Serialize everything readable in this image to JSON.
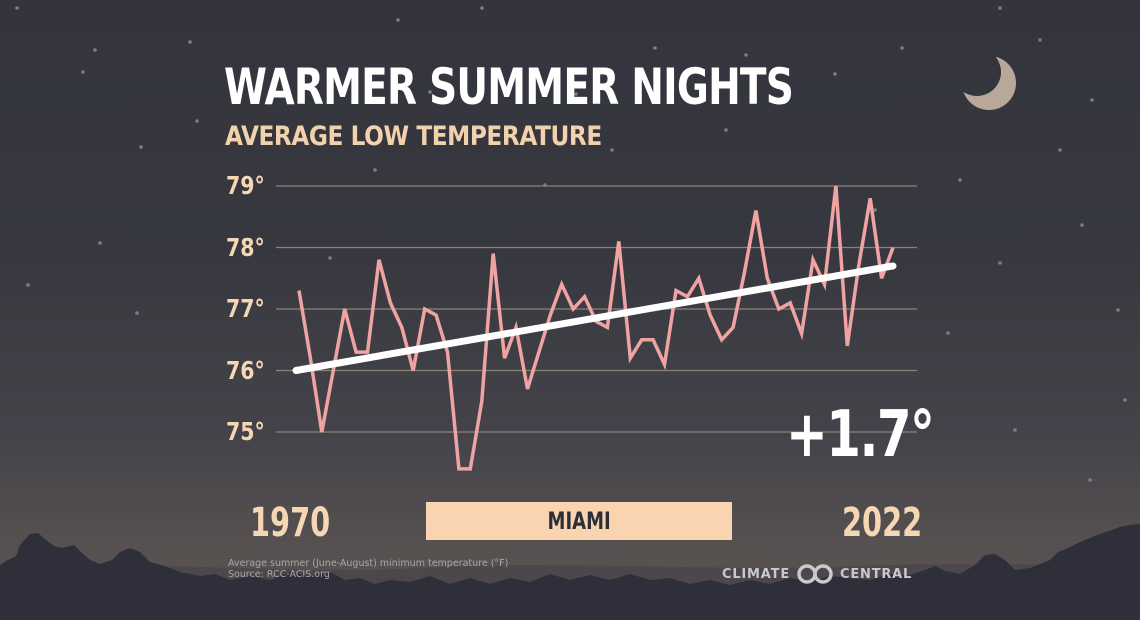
{
  "header": {
    "title": "WARMER SUMMER NIGHTS",
    "subtitle": "AVERAGE LOW TEMPERATURE"
  },
  "y_axis": {
    "ticks": [
      "79°",
      "78°",
      "77°",
      "76°",
      "75°"
    ]
  },
  "x_axis": {
    "start_label": "1970",
    "end_label": "2022"
  },
  "location_label": "MIAMI",
  "change_annotation": "+1.7°",
  "footnote": {
    "line1": "Average summer (June-August) minimum temperature (°F)",
    "line2": "Source: RCC-ACIS.org"
  },
  "brand": {
    "left_word": "CLIMATE",
    "right_word": "CENTRAL",
    "logo_icon": "interlocking-rings-icon"
  },
  "decorations": {
    "moon_icon": "crescent-moon-icon",
    "stars": "star-dot-icons",
    "skyline": "tree-silhouette"
  },
  "colors": {
    "background_top": "#33343e",
    "background_bottom": "#5c5452",
    "title": "#ffffff",
    "subtitle": "#f2d2ad",
    "axis_labels": "#f6d7b3",
    "series_line": "#f0a3a3",
    "trend_line": "#ffffff",
    "gridline": "#8a8378",
    "city_box": "#f8d5b0",
    "moon": "#b9a79a",
    "silhouette": "#2e2f3b"
  },
  "chart_data": {
    "type": "line",
    "title": "WARMER SUMMER NIGHTS",
    "subtitle": "AVERAGE LOW TEMPERATURE",
    "xlabel": "",
    "ylabel": "Average summer (June-August) minimum temperature (°F)",
    "location": "MIAMI",
    "x": [
      1970,
      1971,
      1972,
      1973,
      1974,
      1975,
      1976,
      1977,
      1978,
      1979,
      1980,
      1981,
      1982,
      1983,
      1984,
      1985,
      1986,
      1987,
      1988,
      1989,
      1990,
      1991,
      1992,
      1993,
      1994,
      1995,
      1996,
      1997,
      1998,
      1999,
      2000,
      2001,
      2002,
      2003,
      2004,
      2005,
      2006,
      2007,
      2008,
      2009,
      2010,
      2011,
      2012,
      2013,
      2014,
      2015,
      2016,
      2017,
      2018,
      2019,
      2020,
      2021,
      2022
    ],
    "series": [
      {
        "name": "Average low temperature",
        "color": "#f0a3a3",
        "values": [
          77.3,
          76.2,
          75.0,
          76.0,
          77.0,
          76.3,
          76.3,
          77.8,
          77.1,
          76.7,
          76.0,
          77.0,
          76.9,
          76.3,
          74.4,
          74.4,
          75.5,
          77.9,
          76.2,
          76.7,
          75.7,
          76.3,
          76.9,
          77.4,
          77.0,
          77.2,
          76.8,
          76.7,
          78.1,
          76.2,
          76.5,
          76.5,
          76.1,
          77.3,
          77.2,
          77.5,
          76.9,
          76.5,
          76.7,
          77.6,
          78.6,
          77.5,
          77.0,
          77.1,
          76.6,
          77.8,
          77.4,
          79.0,
          76.4,
          77.7,
          78.8,
          77.5,
          78.0
        ]
      },
      {
        "name": "Trend",
        "color": "#ffffff",
        "x": [
          1970,
          2022
        ],
        "values": [
          76.0,
          77.7
        ]
      }
    ],
    "ylim": [
      74.3,
      79.2
    ],
    "yticks": [
      75,
      76,
      77,
      78,
      79
    ],
    "ytick_labels": [
      "75°",
      "76°",
      "77°",
      "78°",
      "79°"
    ],
    "xtick_labels": [
      "1970",
      "2022"
    ],
    "grid": true,
    "legend": "none",
    "annotations": [
      "+1.7°",
      "Source: RCC-ACIS.org"
    ]
  }
}
